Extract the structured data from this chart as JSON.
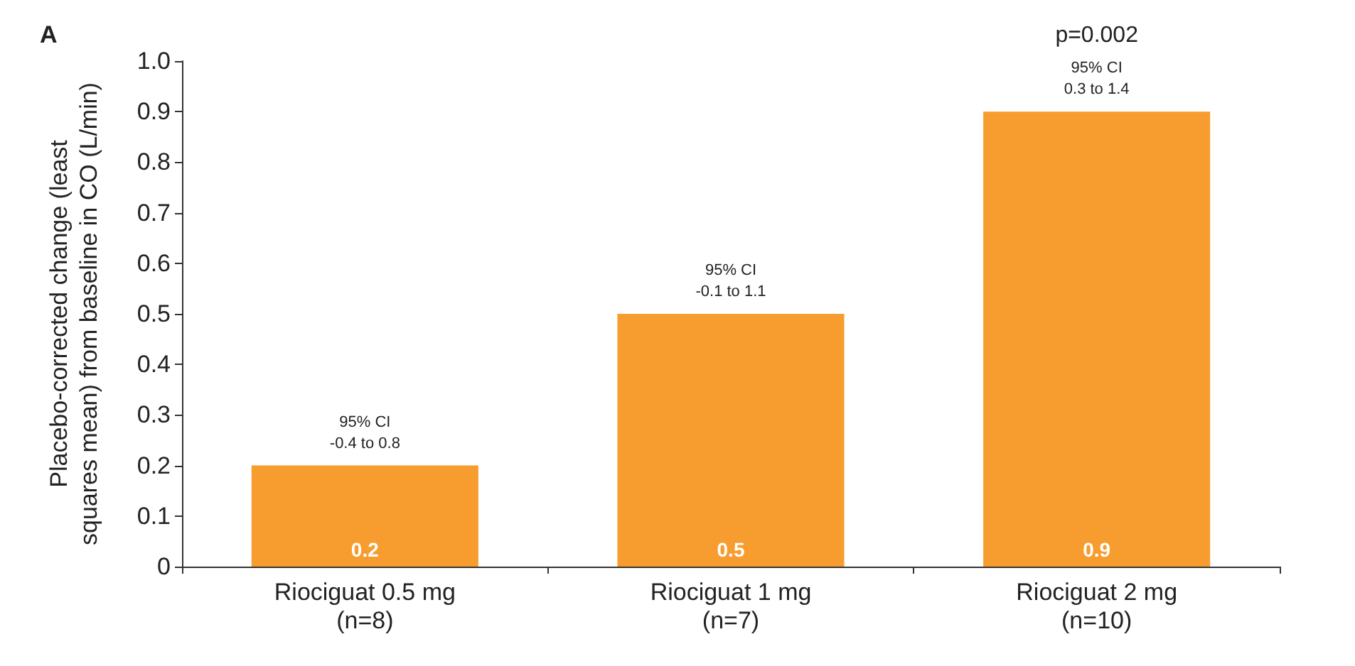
{
  "chart_data": {
    "type": "bar",
    "ylabel": "Placebo-corrected change (least\nsquares mean) from baseline in CO (L/min)",
    "categories": [
      "Riociguat 0.5 mg\n(n=8)",
      "Riociguat 1 mg\n(n=7)",
      "Riociguat 2 mg\n(n=10)"
    ],
    "values": [
      0.2,
      0.5,
      0.9
    ],
    "color": "#f79c2e",
    "data_labels": true,
    "ylim": [
      0,
      1
    ],
    "yticks": [
      0,
      0.1,
      0.2,
      0.3,
      0.4,
      0.5,
      0.6,
      0.7,
      0.8,
      0.9,
      {
        "value": 1,
        "label": "1.0"
      }
    ],
    "grid": false,
    "annotations": [
      "A",
      {
        "text": "95% CI\n-0.4 to 0.8",
        "x": "Riociguat 0.5 mg\n(n=8)",
        "y": 0.2
      },
      {
        "text": "95% CI\n-0.1 to 1.1",
        "x": "Riociguat 1 mg\n(n=7)",
        "y": 0.5
      },
      {
        "text": "95% CI\n0.3 to 1.4",
        "x": "Riociguat 2 mg\n(n=10)",
        "y": 0.9
      },
      "p=0.002"
    ]
  }
}
